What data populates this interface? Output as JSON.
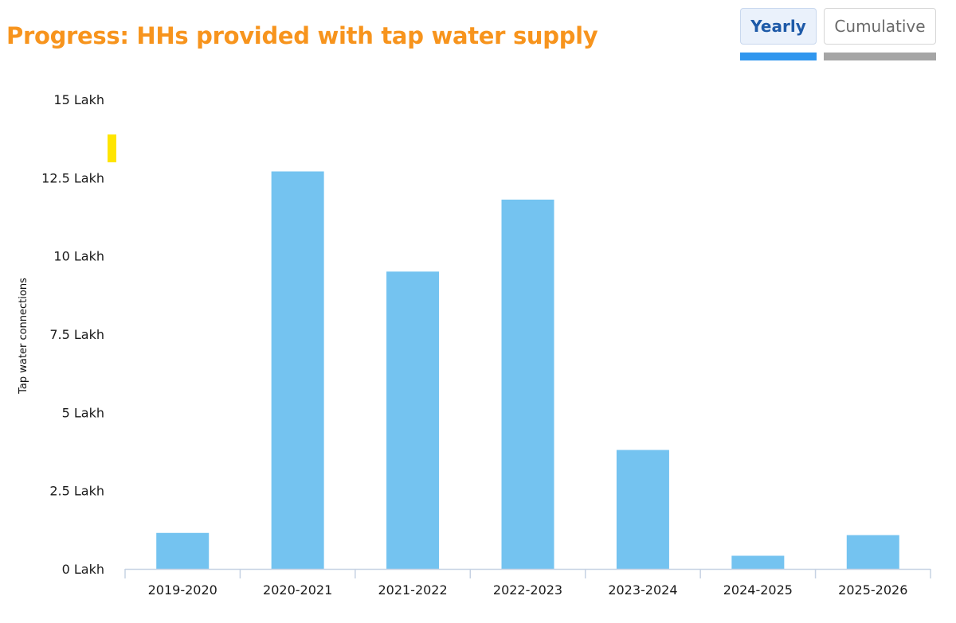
{
  "header": {
    "title": "Progress: HHs provided with tap water supply"
  },
  "toggle": {
    "yearly_label": "Yearly",
    "cumulative_label": "Cumulative",
    "selected": "Yearly"
  },
  "colors": {
    "title": "#f7941d",
    "bar": "#74c3f0",
    "active_underline": "#2f96ee",
    "inactive_underline": "#a5a5a5",
    "marker": "#ffe500"
  },
  "chart_data": {
    "type": "bar",
    "ylabel": "Tap water connections",
    "xlabel": "",
    "unit": "Lakh",
    "categories": [
      "2019-2020",
      "2020-2021",
      "2021-2022",
      "2022-2023",
      "2023-2024",
      "2024-2025",
      "2025-2026"
    ],
    "values": [
      1.15,
      12.7,
      9.5,
      11.8,
      3.8,
      0.42,
      1.08
    ],
    "ylim": [
      0,
      15
    ],
    "yticks": [
      0,
      2.5,
      5,
      7.5,
      10,
      12.5,
      15
    ],
    "ytick_labels": [
      "0 Lakh",
      "2.5 Lakh",
      "5 Lakh",
      "7.5 Lakh",
      "10 Lakh",
      "12.5 Lakh",
      "15 Lakh"
    ],
    "grid": false
  }
}
